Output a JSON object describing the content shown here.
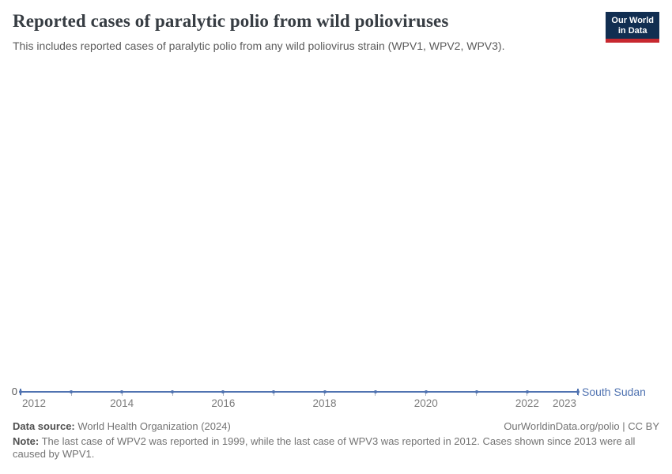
{
  "header": {
    "title": "Reported cases of paralytic polio from wild polioviruses",
    "subtitle": "This includes reported cases of paralytic polio from any wild poliovirus strain (WPV1, WPV2, WPV3).",
    "logo_line1": "Our World",
    "logo_line2": "in Data"
  },
  "chart_data": {
    "type": "line",
    "title": "Reported cases of paralytic polio from wild polioviruses",
    "subtitle": "This includes reported cases of paralytic polio from any wild poliovirus strain (WPV1, WPV2, WPV3).",
    "x": [
      2012,
      2013,
      2014,
      2015,
      2016,
      2017,
      2018,
      2019,
      2020,
      2021,
      2022,
      2023
    ],
    "series": [
      {
        "name": "South Sudan",
        "values": [
          0,
          0,
          0,
          0,
          0,
          0,
          0,
          0,
          0,
          0,
          0,
          0
        ]
      }
    ],
    "x_ticks": [
      2012,
      2014,
      2016,
      2018,
      2020,
      2022,
      2023
    ],
    "y_ticks": [
      0
    ],
    "xlim": [
      2012,
      2023
    ],
    "ylim": [
      0,
      0
    ],
    "grid": false,
    "legend_position": "right-of-line-end",
    "xlabel": "",
    "ylabel": ""
  },
  "chart": {
    "zero_label": "0",
    "entity_label": "South Sudan",
    "colors": {
      "line": "#5073b1",
      "logo_navy": "#112e51",
      "logo_red": "#c7282f"
    }
  },
  "footer": {
    "source_label": "Data source:",
    "source_text": " World Health Organization (2024)",
    "link_text": "OurWorldinData.org/polio | CC BY",
    "note_label": "Note:",
    "note_text": " The last case of WPV2 was reported in 1999, while the last case of WPV3 was reported in 2012. Cases shown since 2013 were all caused by WPV1."
  }
}
